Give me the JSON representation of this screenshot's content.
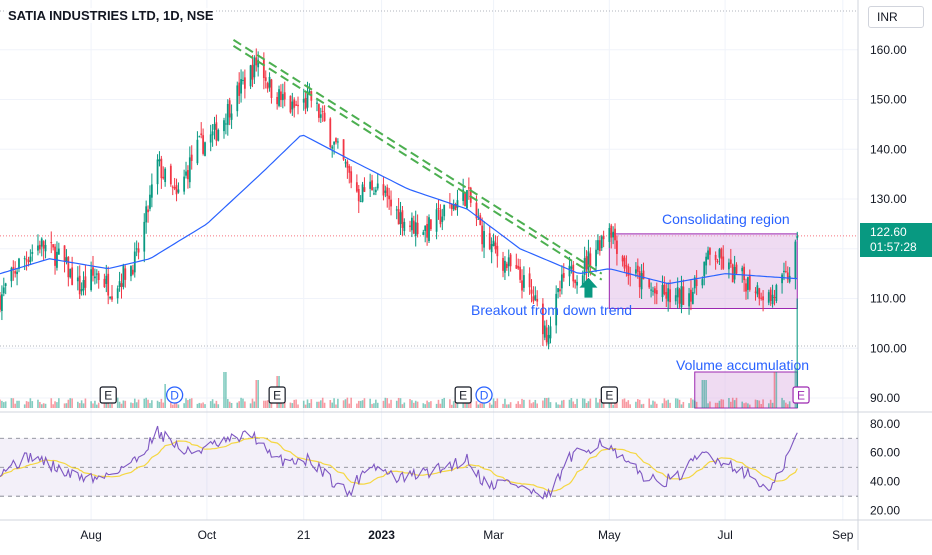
{
  "header": {
    "title": "SATIA INDUSTRIES LTD, 1D, NSE",
    "currency": "INR"
  },
  "last_price": {
    "value": "122.60",
    "countdown": "01:57:28"
  },
  "annotations": {
    "consolidation": "Consolidating region",
    "breakout": "Breakout from down trend",
    "volume": "Volume accumulation"
  },
  "event_markers": [
    {
      "label": "E",
      "x_date": "2022-08-10",
      "type": "earnings"
    },
    {
      "label": "D",
      "x_date": "2022-09-14",
      "type": "dividend"
    },
    {
      "label": "E",
      "x_date": "2022-11-07",
      "type": "earnings"
    },
    {
      "label": "E",
      "x_date": "2023-02-13",
      "type": "earnings"
    },
    {
      "label": "D",
      "x_date": "2023-02-24",
      "type": "dividend"
    },
    {
      "label": "E",
      "x_date": "2023-05-01",
      "type": "earnings"
    },
    {
      "label": "E",
      "x_date": "2023-08-10",
      "type": "earnings-upcoming"
    }
  ],
  "colors": {
    "up": "#089981",
    "down": "#f23645",
    "ma": "#2962ff",
    "trendline": "#4caf50",
    "box_fill": "#e1bee7",
    "box_border": "#9c27b0",
    "rsi": "#7e57c2",
    "rsi_ma": "#f5d742",
    "annotation_text": "#2962ff",
    "arrow": "#089981"
  },
  "chart_data": [
    {
      "type": "candlestick",
      "title": "SATIA INDUSTRIES LTD, 1D, NSE",
      "y_ticks": [
        90,
        100,
        110,
        120,
        130,
        140,
        150,
        160
      ],
      "y_tick_labels": [
        "90.00",
        "100.00",
        "110.00",
        "",
        "130.00",
        "140.00",
        "150.00",
        "160.00"
      ],
      "ylim": [
        88,
        168
      ],
      "x_ticks": [
        "Aug",
        "Oct",
        "21",
        "2023",
        "Mar",
        "May",
        "Jul",
        "Sep"
      ],
      "x_tick_dates": [
        "2022-08-01",
        "2022-10-01",
        "2022-11-21",
        "2023-01-01",
        "2023-03-01",
        "2023-05-01",
        "2023-07-01",
        "2023-09-01"
      ],
      "xlim": [
        "2022-06-14",
        "2023-09-09"
      ],
      "last_price": 122.6,
      "anchors": [
        [
          "2022-06-14",
          110
        ],
        [
          "2022-06-24",
          117
        ],
        [
          "2022-07-05",
          121
        ],
        [
          "2022-07-16",
          118
        ],
        [
          "2022-07-26",
          112
        ],
        [
          "2022-08-04",
          115
        ],
        [
          "2022-08-12",
          112
        ],
        [
          "2022-08-25",
          118
        ],
        [
          "2022-08-31",
          128
        ],
        [
          "2022-09-05",
          137
        ],
        [
          "2022-09-15",
          130
        ],
        [
          "2022-09-25",
          140
        ],
        [
          "2022-10-05",
          143
        ],
        [
          "2022-10-15",
          150
        ],
        [
          "2022-10-28",
          158
        ],
        [
          "2022-11-04",
          152
        ],
        [
          "2022-11-15",
          148
        ],
        [
          "2022-11-25",
          150
        ],
        [
          "2022-12-02",
          145
        ],
        [
          "2022-12-12",
          137
        ],
        [
          "2022-12-20",
          131
        ],
        [
          "2022-12-28",
          133
        ],
        [
          "2023-01-05",
          129
        ],
        [
          "2023-01-15",
          125
        ],
        [
          "2023-01-25",
          124
        ],
        [
          "2023-02-05",
          128
        ],
        [
          "2023-02-15",
          131
        ],
        [
          "2023-02-24",
          122
        ],
        [
          "2023-03-05",
          118
        ],
        [
          "2023-03-15",
          114
        ],
        [
          "2023-03-22",
          110
        ],
        [
          "2023-03-29",
          103
        ],
        [
          "2023-04-07",
          114
        ],
        [
          "2023-04-17",
          116
        ],
        [
          "2023-04-25",
          121
        ],
        [
          "2023-05-01",
          125
        ],
        [
          "2023-05-10",
          116
        ],
        [
          "2023-05-25",
          111
        ],
        [
          "2023-06-05",
          110
        ],
        [
          "2023-06-15",
          112
        ],
        [
          "2023-06-20",
          117
        ],
        [
          "2023-06-25",
          119
        ],
        [
          "2023-07-05",
          115
        ],
        [
          "2023-07-15",
          113
        ],
        [
          "2023-07-25",
          110
        ],
        [
          "2023-08-02",
          114
        ],
        [
          "2023-08-06",
          117
        ],
        [
          "2023-08-08",
          122.6
        ]
      ],
      "moving_average_anchors": [
        [
          "2022-06-14",
          115
        ],
        [
          "2022-07-10",
          118
        ],
        [
          "2022-08-10",
          116
        ],
        [
          "2022-09-01",
          118
        ],
        [
          "2022-10-01",
          125
        ],
        [
          "2022-11-01",
          136
        ],
        [
          "2022-11-20",
          143
        ],
        [
          "2022-12-15",
          138
        ],
        [
          "2023-01-15",
          132
        ],
        [
          "2023-02-15",
          128
        ],
        [
          "2023-03-15",
          120
        ],
        [
          "2023-04-15",
          115
        ],
        [
          "2023-05-01",
          116
        ],
        [
          "2023-06-01",
          113
        ],
        [
          "2023-07-01",
          115
        ],
        [
          "2023-08-08",
          114
        ]
      ],
      "trendline": {
        "from": [
          "2022-10-15",
          162
        ],
        "to": [
          "2023-04-27",
          115
        ]
      },
      "consolidation_box": {
        "from": [
          "2023-05-01",
          108
        ],
        "to": [
          "2023-08-08",
          123
        ]
      },
      "breakout_arrow": {
        "date": "2023-04-20",
        "tip_price": 115
      }
    },
    {
      "type": "bar",
      "title": "Volume",
      "accumulation_box": {
        "from": [
          "2023-06-15",
          0
        ],
        "to": [
          "2023-08-08",
          1
        ]
      },
      "spikes": [
        [
          "2022-10-10",
          0.9
        ],
        [
          "2022-10-28",
          0.7
        ],
        [
          "2022-11-07",
          0.8
        ],
        [
          "2022-09-10",
          0.6
        ],
        [
          "2023-06-20",
          0.7
        ],
        [
          "2023-07-28",
          0.9
        ],
        [
          "2023-08-08",
          1.0
        ]
      ]
    },
    {
      "type": "line",
      "title": "RSI",
      "y_ticks": [
        20,
        40,
        60,
        80
      ],
      "y_tick_labels": [
        "20.00",
        "40.00",
        "60.00",
        "80.00"
      ],
      "ylim": [
        17,
        84
      ],
      "bands": [
        30,
        50,
        70
      ],
      "anchors": [
        [
          "2022-06-14",
          48
        ],
        [
          "2022-07-01",
          58
        ],
        [
          "2022-07-20",
          45
        ],
        [
          "2022-08-05",
          42
        ],
        [
          "2022-08-25",
          55
        ],
        [
          "2022-09-05",
          75
        ],
        [
          "2022-09-20",
          60
        ],
        [
          "2022-10-05",
          65
        ],
        [
          "2022-10-25",
          73
        ],
        [
          "2022-11-05",
          55
        ],
        [
          "2022-11-25",
          55
        ],
        [
          "2022-12-05",
          42
        ],
        [
          "2022-12-15",
          32
        ],
        [
          "2022-12-25",
          53
        ],
        [
          "2023-01-10",
          42
        ],
        [
          "2023-01-30",
          48
        ],
        [
          "2023-02-15",
          56
        ],
        [
          "2023-02-25",
          38
        ],
        [
          "2023-03-10",
          40
        ],
        [
          "2023-03-29",
          28
        ],
        [
          "2023-04-10",
          56
        ],
        [
          "2023-04-27",
          68
        ],
        [
          "2023-05-10",
          52
        ],
        [
          "2023-05-25",
          40
        ],
        [
          "2023-06-05",
          42
        ],
        [
          "2023-06-20",
          60
        ],
        [
          "2023-07-10",
          48
        ],
        [
          "2023-07-25",
          33
        ],
        [
          "2023-08-02",
          55
        ],
        [
          "2023-08-08",
          73
        ]
      ]
    }
  ]
}
